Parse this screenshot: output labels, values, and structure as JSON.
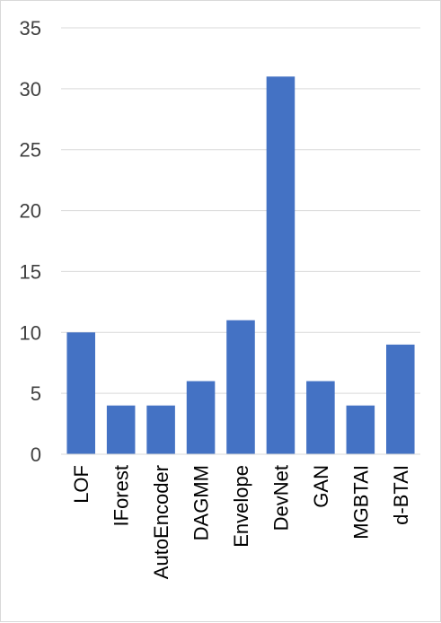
{
  "chart_data": {
    "type": "bar",
    "title": "",
    "xlabel": "",
    "ylabel": "",
    "categories": [
      "LOF",
      "IForest",
      "AutoEncoder",
      "DAGMM",
      "Envelope",
      "DevNet",
      "GAN",
      "MGBTAI",
      "d-BTAI"
    ],
    "values": [
      10,
      4,
      4,
      6,
      11,
      31,
      6,
      4,
      9
    ],
    "ylim": [
      0,
      35
    ],
    "yticks": [
      0,
      5,
      10,
      15,
      20,
      25,
      30,
      35
    ],
    "grid": true,
    "legend": "none",
    "bar_color": "#4472c4",
    "grid_color": "#d9d9d9"
  }
}
